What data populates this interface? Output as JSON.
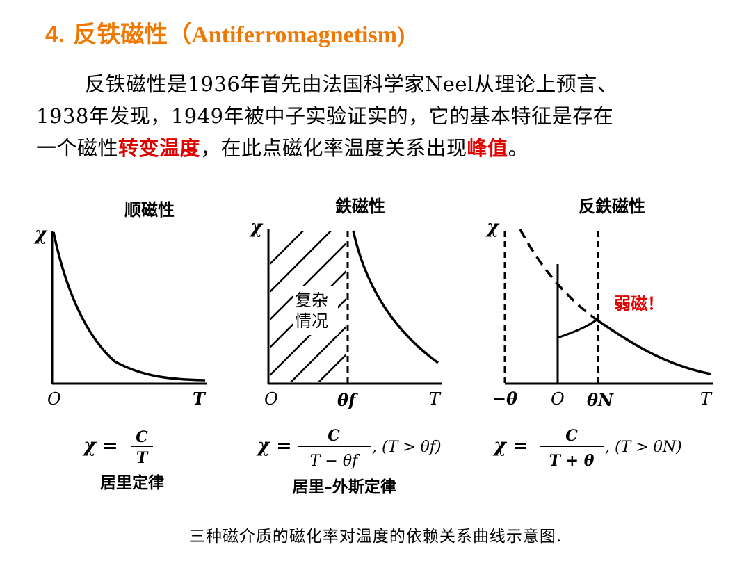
{
  "header": {
    "number": "4.",
    "title_cn": "反铁磁性（",
    "title_en": "Antiferromagnetism)"
  },
  "paragraph": {
    "line1": "反铁磁性是1936年首先由法国科学家Neel从理论上预言、",
    "line2": "1938年发现，1949年被中子实验证实的，它的基本特征是存在",
    "line3_a": "一个磁性",
    "line3_red1": "转变温度",
    "line3_b": "，在此点磁化率温度关系出现",
    "line3_red2": "峰值",
    "line3_c": "。"
  },
  "figure": {
    "panels": [
      {
        "title": "顺磁性",
        "y_axis": "χ",
        "x_origin": "O",
        "x_end": "T",
        "formula_lhs": "χ =",
        "formula_num": "C",
        "formula_den": "T",
        "formula_cond": "",
        "law": "居里定律"
      },
      {
        "title": "鉄磁性",
        "y_axis": "χ",
        "x_origin": "O",
        "x_mark": "θf",
        "x_end": "T",
        "region_label_1": "复杂",
        "region_label_2": "情况",
        "formula_lhs": "χ =",
        "formula_num": "C",
        "formula_den": "T − θf",
        "formula_cond": ", (T > θf)",
        "law": "居里–外斯定律"
      },
      {
        "title": "反鉄磁性",
        "y_axis": "χ",
        "x_neg": "−θ",
        "x_origin": "O",
        "x_mark": "θN",
        "x_end": "T",
        "annotation": "弱磁！",
        "formula_lhs": "χ =",
        "formula_num": "C",
        "formula_den": "T + θ",
        "formula_cond": ", (T > θN)",
        "law": ""
      }
    ],
    "caption": "三种磁介质的磁化率对温度的依赖关系曲线示意图."
  },
  "colors": {
    "title": "#f07800",
    "highlight": "#e10000"
  }
}
